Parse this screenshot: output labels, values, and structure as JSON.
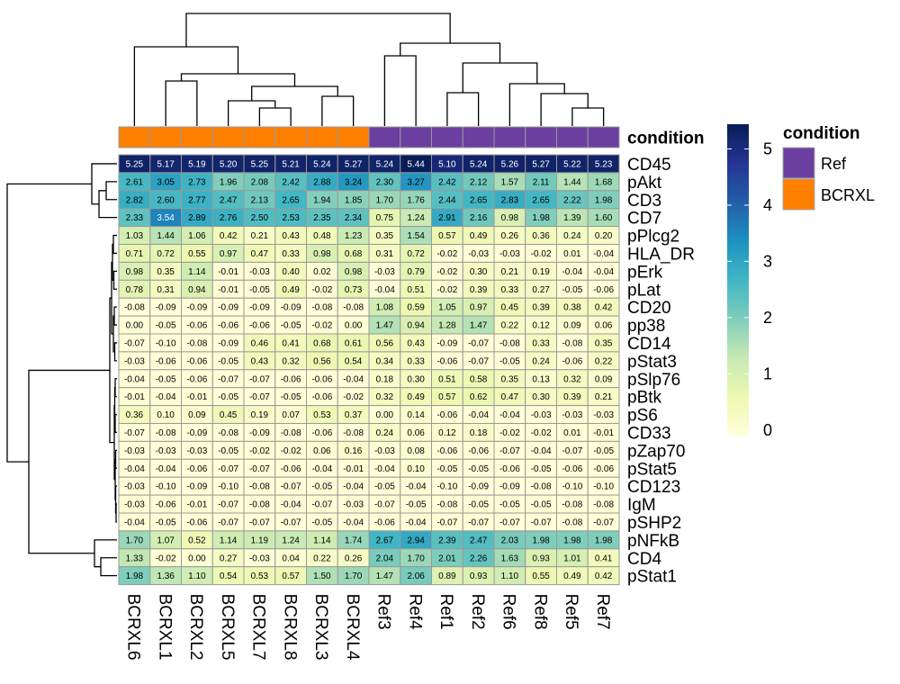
{
  "chart_data": {
    "type": "heatmap",
    "columns": [
      "BCRXL6",
      "BCRXL1",
      "BCRXL2",
      "BCRXL5",
      "BCRXL7",
      "BCRXL8",
      "BCRXL3",
      "BCRXL4",
      "Ref3",
      "Ref4",
      "Ref1",
      "Ref2",
      "Ref6",
      "Ref8",
      "Ref5",
      "Ref7"
    ],
    "column_condition": [
      "BCRXL",
      "BCRXL",
      "BCRXL",
      "BCRXL",
      "BCRXL",
      "BCRXL",
      "BCRXL",
      "BCRXL",
      "Ref",
      "Ref",
      "Ref",
      "Ref",
      "Ref",
      "Ref",
      "Ref",
      "Ref"
    ],
    "rows": [
      "CD45",
      "pAkt",
      "CD3",
      "CD7",
      "pPlcg2",
      "HLA_DR",
      "pErk",
      "pLat",
      "CD20",
      "pp38",
      "CD14",
      "pStat3",
      "pSlp76",
      "pBtk",
      "pS6",
      "CD33",
      "pZap70",
      "pStat5",
      "CD123",
      "IgM",
      "pSHP2",
      "pNFkB",
      "CD4",
      "pStat1"
    ],
    "values": [
      [
        5.25,
        5.17,
        5.19,
        5.2,
        5.25,
        5.21,
        5.24,
        5.27,
        5.24,
        5.44,
        5.1,
        5.24,
        5.26,
        5.27,
        5.22,
        5.23
      ],
      [
        2.61,
        3.05,
        2.73,
        1.96,
        2.08,
        2.42,
        2.88,
        3.24,
        2.3,
        3.27,
        2.42,
        2.12,
        1.57,
        2.11,
        1.44,
        1.68
      ],
      [
        2.82,
        2.6,
        2.77,
        2.47,
        2.13,
        2.65,
        1.94,
        1.85,
        1.7,
        1.76,
        2.44,
        2.65,
        2.83,
        2.65,
        2.22,
        1.98
      ],
      [
        2.33,
        3.54,
        2.89,
        2.76,
        2.5,
        2.53,
        2.35,
        2.34,
        0.75,
        1.24,
        2.91,
        2.16,
        0.98,
        1.98,
        1.39,
        1.6
      ],
      [
        1.03,
        1.44,
        1.06,
        0.42,
        0.21,
        0.43,
        0.48,
        1.23,
        0.35,
        1.54,
        0.57,
        0.49,
        0.26,
        0.36,
        0.24,
        0.2
      ],
      [
        0.71,
        0.72,
        0.55,
        0.97,
        0.47,
        0.33,
        0.98,
        0.68,
        0.31,
        0.72,
        -0.02,
        -0.03,
        -0.03,
        -0.02,
        0.01,
        -0.04
      ],
      [
        0.98,
        0.35,
        1.14,
        -0.01,
        -0.03,
        0.4,
        0.02,
        0.98,
        -0.03,
        0.79,
        -0.02,
        0.3,
        0.21,
        0.19,
        -0.04,
        -0.04
      ],
      [
        0.78,
        0.31,
        0.94,
        -0.01,
        -0.05,
        0.49,
        -0.02,
        0.73,
        -0.04,
        0.51,
        -0.02,
        0.39,
        0.33,
        0.27,
        -0.05,
        -0.06
      ],
      [
        -0.08,
        -0.09,
        -0.09,
        -0.09,
        -0.09,
        -0.09,
        -0.08,
        -0.08,
        1.08,
        0.59,
        1.05,
        0.97,
        0.45,
        0.39,
        0.38,
        0.42
      ],
      [
        -0.0,
        -0.05,
        -0.06,
        -0.06,
        -0.06,
        -0.05,
        -0.02,
        -0.0,
        1.47,
        0.94,
        1.28,
        1.47,
        0.22,
        0.12,
        0.09,
        0.06
      ],
      [
        -0.07,
        -0.1,
        -0.08,
        -0.09,
        0.46,
        0.41,
        0.68,
        0.61,
        0.56,
        0.43,
        -0.09,
        -0.07,
        -0.08,
        0.33,
        -0.08,
        0.35
      ],
      [
        -0.03,
        -0.06,
        -0.06,
        -0.05,
        0.43,
        0.32,
        0.56,
        0.54,
        0.34,
        0.33,
        -0.06,
        -0.07,
        -0.05,
        0.24,
        -0.06,
        0.22
      ],
      [
        -0.04,
        -0.05,
        -0.06,
        -0.07,
        -0.07,
        -0.06,
        -0.06,
        -0.04,
        0.18,
        0.3,
        0.51,
        0.58,
        0.35,
        0.13,
        0.32,
        0.09
      ],
      [
        -0.01,
        -0.04,
        -0.01,
        -0.05,
        -0.07,
        -0.05,
        -0.06,
        -0.02,
        0.32,
        0.49,
        0.57,
        0.62,
        0.47,
        0.3,
        0.39,
        0.21
      ],
      [
        0.36,
        0.1,
        0.09,
        0.45,
        0.19,
        0.07,
        0.53,
        0.37,
        -0.0,
        0.14,
        -0.06,
        -0.04,
        -0.04,
        -0.03,
        -0.03,
        -0.03
      ],
      [
        -0.07,
        -0.08,
        -0.09,
        -0.08,
        -0.09,
        -0.08,
        -0.06,
        -0.08,
        0.24,
        0.06,
        0.12,
        0.18,
        -0.02,
        -0.02,
        0.01,
        -0.01
      ],
      [
        -0.03,
        -0.03,
        -0.03,
        -0.05,
        -0.02,
        -0.02,
        0.06,
        0.16,
        -0.03,
        0.08,
        -0.06,
        -0.06,
        -0.07,
        -0.04,
        -0.07,
        -0.05
      ],
      [
        -0.04,
        -0.04,
        -0.06,
        -0.07,
        -0.07,
        -0.06,
        -0.04,
        -0.01,
        -0.04,
        0.1,
        -0.05,
        -0.05,
        -0.06,
        -0.05,
        -0.06,
        -0.06
      ],
      [
        -0.03,
        -0.1,
        -0.09,
        -0.1,
        -0.08,
        -0.07,
        -0.05,
        -0.04,
        -0.05,
        -0.04,
        -0.1,
        -0.09,
        -0.09,
        -0.08,
        -0.1,
        -0.1
      ],
      [
        -0.03,
        -0.06,
        -0.01,
        -0.07,
        -0.08,
        -0.04,
        -0.07,
        -0.03,
        -0.07,
        -0.05,
        -0.08,
        -0.05,
        -0.05,
        -0.05,
        -0.08,
        -0.08
      ],
      [
        -0.04,
        -0.05,
        -0.06,
        -0.07,
        -0.07,
        -0.07,
        -0.05,
        -0.04,
        -0.06,
        -0.04,
        -0.07,
        -0.07,
        -0.07,
        -0.07,
        -0.08,
        -0.07
      ],
      [
        1.7,
        1.07,
        0.52,
        1.14,
        1.19,
        1.24,
        1.14,
        1.74,
        2.67,
        2.94,
        2.39,
        2.47,
        2.03,
        1.98,
        1.98,
        1.98
      ],
      [
        1.33,
        -0.02,
        -0.0,
        0.27,
        -0.03,
        0.04,
        0.22,
        0.26,
        2.04,
        1.7,
        2.01,
        2.26,
        1.63,
        0.93,
        1.01,
        0.41
      ],
      [
        1.98,
        1.36,
        1.1,
        0.54,
        0.53,
        0.57,
        1.5,
        1.7,
        1.47,
        2.06,
        0.89,
        0.93,
        1.1,
        0.55,
        0.49,
        0.42
      ]
    ],
    "annotation_title": "condition",
    "annotation_colors": {
      "Ref": "#6b3fa0",
      "BCRXL": "#ff7f00"
    },
    "legend_condition": {
      "title": "condition",
      "entries": [
        {
          "label": "Ref",
          "color": "#6b3fa0"
        },
        {
          "label": "BCRXL",
          "color": "#ff7f00"
        }
      ]
    },
    "colorbar": {
      "range": [
        -0.1,
        5.44
      ],
      "ticks": [
        0,
        1,
        2,
        3,
        4,
        5
      ],
      "stops": [
        "#ffffd9",
        "#edf8b1",
        "#c7e9b4",
        "#7fcdbb",
        "#41b6c4",
        "#1d91c0",
        "#225ea8",
        "#253494",
        "#081d58"
      ]
    },
    "cell_border_color": "#999999"
  }
}
